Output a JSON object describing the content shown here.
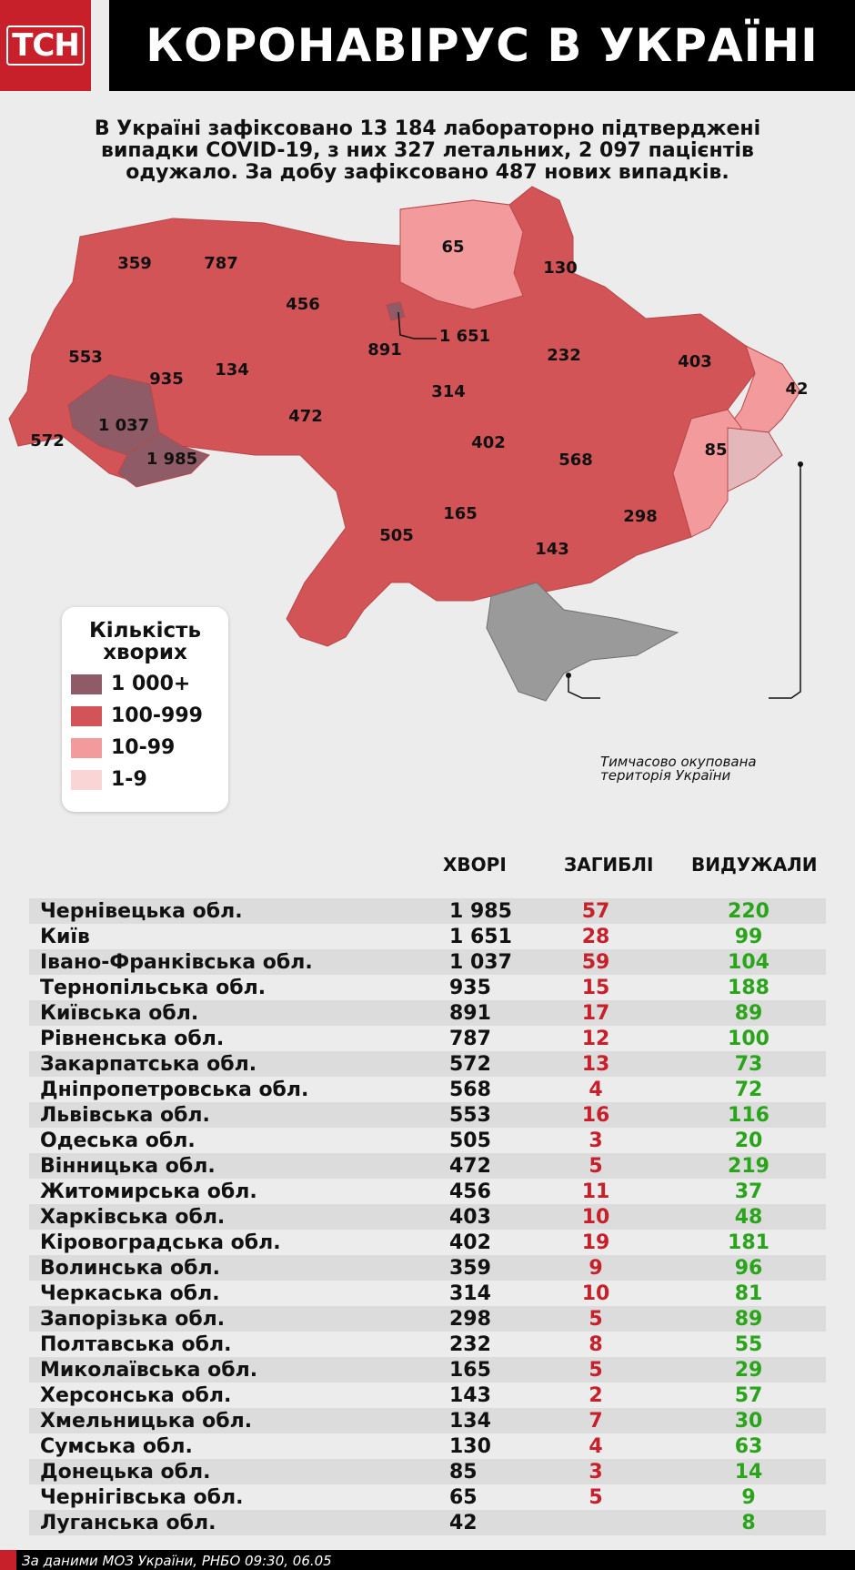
{
  "header": {
    "logo": "TCH",
    "title": "КОРОНАВІРУС В УКРАЇНІ"
  },
  "summary": "В Україні зафіксовано 13 184 лабораторно підтверджені випадки COVID-19, з них 327 летальних, 2 097 пацієнтів одужало. За добу зафіксовано 487 нових випадків.",
  "map_labels": [
    {
      "id": "volyn",
      "value": "359"
    },
    {
      "id": "rivne",
      "value": "787"
    },
    {
      "id": "zhytomyr",
      "value": "456"
    },
    {
      "id": "chernihiv",
      "value": "65"
    },
    {
      "id": "sumy",
      "value": "130"
    },
    {
      "id": "kyiv-city",
      "value": "1 651"
    },
    {
      "id": "lviv",
      "value": "553"
    },
    {
      "id": "ternopil",
      "value": "935"
    },
    {
      "id": "khmelnytskyi",
      "value": "134"
    },
    {
      "id": "kyiv-oblast",
      "value": "891"
    },
    {
      "id": "poltava",
      "value": "232"
    },
    {
      "id": "kharkiv",
      "value": "403"
    },
    {
      "id": "luhansk",
      "value": "42"
    },
    {
      "id": "cherkasy",
      "value": "314"
    },
    {
      "id": "ivano-frankivsk",
      "value": "1 037"
    },
    {
      "id": "zakarpattia",
      "value": "572"
    },
    {
      "id": "chernivtsi",
      "value": "1 985"
    },
    {
      "id": "vinnytsia",
      "value": "472"
    },
    {
      "id": "kirovohrad",
      "value": "402"
    },
    {
      "id": "dnipro",
      "value": "568"
    },
    {
      "id": "donetsk",
      "value": "85"
    },
    {
      "id": "mykolaiv",
      "value": "165"
    },
    {
      "id": "zaporizhzhia",
      "value": "298"
    },
    {
      "id": "odesa",
      "value": "505"
    },
    {
      "id": "kherson",
      "value": "143"
    }
  ],
  "legend": {
    "title": "Кількість хворих",
    "items": [
      {
        "label": "1 000+",
        "color": "#8f5b66"
      },
      {
        "label": "100-999",
        "color": "#d25457"
      },
      {
        "label": "10-99",
        "color": "#f29a9c"
      },
      {
        "label": "1-9",
        "color": "#f9d5d6"
      }
    ]
  },
  "occupied_label": "Тимчасово окупована територія України",
  "colors": {
    "dark": "#8f5b66",
    "main": "#d25457",
    "light": "#f29a9c",
    "pale": "#f9d5d6",
    "deaths": "#c8202a",
    "recovered": "#2aa41b",
    "occupied": "#9a9a9a"
  },
  "table": {
    "headers": {
      "cases": "ХВОРІ",
      "deaths": "ЗАГИБЛІ",
      "recovered": "ВИДУЖАЛИ"
    },
    "rows": [
      {
        "name": "Чернівецька обл.",
        "cases": "1 985",
        "deaths": "57",
        "recovered": "220"
      },
      {
        "name": "Київ",
        "cases": "1 651",
        "deaths": "28",
        "recovered": "99"
      },
      {
        "name": "Івано-Франківська обл.",
        "cases": "1 037",
        "deaths": "59",
        "recovered": "104"
      },
      {
        "name": "Тернопільська обл.",
        "cases": "935",
        "deaths": "15",
        "recovered": "188"
      },
      {
        "name": "Київська обл.",
        "cases": "891",
        "deaths": "17",
        "recovered": "89"
      },
      {
        "name": "Рівненська обл.",
        "cases": "787",
        "deaths": "12",
        "recovered": "100"
      },
      {
        "name": "Закарпатська обл.",
        "cases": "572",
        "deaths": "13",
        "recovered": "73"
      },
      {
        "name": "Дніпропетровська обл.",
        "cases": "568",
        "deaths": "4",
        "recovered": "72"
      },
      {
        "name": "Львівська обл.",
        "cases": "553",
        "deaths": "16",
        "recovered": "116"
      },
      {
        "name": "Одеська обл.",
        "cases": "505",
        "deaths": "3",
        "recovered": "20"
      },
      {
        "name": "Вінницька обл.",
        "cases": "472",
        "deaths": "5",
        "recovered": "219"
      },
      {
        "name": "Житомирська обл.",
        "cases": "456",
        "deaths": "11",
        "recovered": "37"
      },
      {
        "name": "Харківська обл.",
        "cases": "403",
        "deaths": "10",
        "recovered": "48"
      },
      {
        "name": "Кіровоградська обл.",
        "cases": "402",
        "deaths": "19",
        "recovered": "181"
      },
      {
        "name": "Волинська обл.",
        "cases": "359",
        "deaths": "9",
        "recovered": "96"
      },
      {
        "name": "Черкаська обл.",
        "cases": "314",
        "deaths": "10",
        "recovered": "81"
      },
      {
        "name": "Запорізька обл.",
        "cases": "298",
        "deaths": "5",
        "recovered": "89"
      },
      {
        "name": "Полтавська обл.",
        "cases": "232",
        "deaths": "8",
        "recovered": "55"
      },
      {
        "name": "Миколаївська обл.",
        "cases": "165",
        "deaths": "5",
        "recovered": "29"
      },
      {
        "name": "Херсонська обл.",
        "cases": "143",
        "deaths": "2",
        "recovered": "57"
      },
      {
        "name": "Хмельницька обл.",
        "cases": "134",
        "deaths": "7",
        "recovered": "30"
      },
      {
        "name": "Сумська обл.",
        "cases": "130",
        "deaths": "4",
        "recovered": "63"
      },
      {
        "name": "Донецька обл.",
        "cases": "85",
        "deaths": "3",
        "recovered": "14"
      },
      {
        "name": "Чернігівська обл.",
        "cases": "65",
        "deaths": "5",
        "recovered": "9"
      },
      {
        "name": "Луганська обл.",
        "cases": "42",
        "deaths": "",
        "recovered": "8"
      }
    ]
  },
  "footer": "За даними МОЗ України, РНБО  09:30, 06.05"
}
